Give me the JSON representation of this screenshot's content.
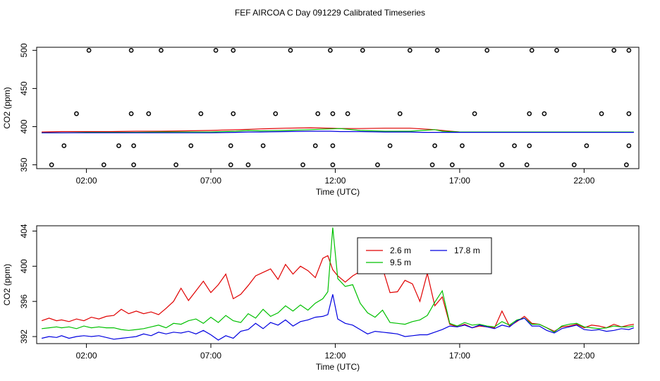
{
  "figure": {
    "title": "FEF AIRCOA C  Day 091229  Calibrated Timeseries"
  },
  "colors": {
    "series_2_6m": "#e00000",
    "series_9_5m": "#00c000",
    "series_17_8m": "#0000e0",
    "calib": "#000000"
  },
  "chart_data": [
    {
      "type": "line",
      "title": "FEF AIRCOA C  Day 091229  Calibrated Timeseries",
      "xlabel": "Time (UTC)",
      "ylabel": "CO2 (ppm)",
      "xlim": [
        0,
        24.2
      ],
      "ylim": [
        345,
        504
      ],
      "x_ticks": [
        2,
        7,
        12,
        17,
        22
      ],
      "x_tick_labels": [
        "02:00",
        "07:00",
        "12:00",
        "17:00",
        "22:00"
      ],
      "y_ticks": [
        350,
        400,
        450,
        500
      ],
      "y_tick_labels": [
        "350",
        "400",
        "450",
        "500"
      ],
      "x": [
        0.2,
        1,
        2,
        3,
        4,
        5,
        6,
        7,
        8,
        8.5,
        9,
        10,
        11,
        11.8,
        12.2,
        13,
        14,
        15,
        15.5,
        16,
        16.3,
        17,
        18,
        19,
        20,
        21,
        22,
        23,
        23.5,
        24
      ],
      "series": [
        {
          "name": "2.6 m",
          "values": [
            393,
            393.5,
            393.5,
            393.5,
            394,
            394,
            394.5,
            395,
            396,
            396.5,
            397,
            398,
            398.5,
            398,
            397.5,
            397.5,
            398,
            398,
            397,
            396,
            395,
            393,
            393,
            393,
            393,
            393,
            393,
            393,
            393,
            393
          ]
        },
        {
          "name": "9.5 m",
          "values": [
            392,
            392,
            392.5,
            392.5,
            392.5,
            393,
            393,
            393,
            394,
            395,
            394.5,
            395,
            396,
            397,
            397.5,
            395,
            394,
            394,
            395,
            396,
            394,
            393,
            393,
            393,
            393,
            393,
            393,
            393,
            393,
            393
          ]
        },
        {
          "name": "17.8 m",
          "values": [
            392,
            392,
            392,
            392,
            392,
            392,
            392,
            392,
            392.5,
            393,
            393,
            393.5,
            394,
            394,
            393.5,
            393.5,
            393,
            393,
            392.5,
            392.5,
            392.5,
            392.5,
            392.5,
            392.5,
            392.5,
            392.5,
            392.5,
            392.5,
            392.5,
            392.5
          ]
        }
      ],
      "calibration_points": {
        "x": [
          0.6,
          1.1,
          1.6,
          2.1,
          2.7,
          3.3,
          3.9,
          3.9,
          3.8,
          3.8,
          4.5,
          5,
          5.6,
          6.2,
          6.6,
          7.2,
          7.8,
          7.8,
          7.9,
          7.9,
          8.5,
          9.1,
          9.6,
          10.2,
          10.7,
          11.2,
          11.3,
          11.8,
          11.9,
          11.9,
          11.9,
          12.5,
          13.1,
          13.7,
          14.2,
          14.6,
          15,
          15.9,
          16,
          16.1,
          16.7,
          17.1,
          17.6,
          18.1,
          18.7,
          19.2,
          19.7,
          19.8,
          19.8,
          19.9,
          20.4,
          20.9,
          21.6,
          22.1,
          22.7,
          23.2,
          23.7,
          23.8,
          23.8,
          23.8
        ],
        "y": [
          350,
          375,
          417,
          500,
          350,
          375,
          350,
          375,
          417,
          500,
          417,
          500,
          350,
          375,
          417,
          500,
          350,
          375,
          417,
          500,
          350,
          375,
          417,
          500,
          350,
          375,
          417,
          500,
          350,
          375,
          417,
          417,
          500,
          350,
          375,
          417,
          500,
          350,
          375,
          500,
          350,
          375,
          417,
          500,
          350,
          375,
          350,
          375,
          417,
          500,
          417,
          500,
          350,
          375,
          417,
          500,
          350,
          375,
          417,
          500
        ]
      }
    },
    {
      "type": "line",
      "title": "",
      "xlabel": "Time (UTC)",
      "ylabel": "CO2 (ppm)",
      "xlim": [
        0,
        24.2
      ],
      "ylim": [
        391.2,
        404.6
      ],
      "x_ticks": [
        2,
        7,
        12,
        17,
        22
      ],
      "x_tick_labels": [
        "02:00",
        "07:00",
        "12:00",
        "17:00",
        "22:00"
      ],
      "y_ticks": [
        392,
        396,
        400,
        404
      ],
      "y_tick_labels": [
        "392",
        "396",
        "400",
        "404"
      ],
      "legend": {
        "entries": [
          "2.6 m",
          "9.5 m",
          "17.8 m"
        ],
        "placement": "top-center"
      },
      "x": [
        0.2,
        0.5,
        0.8,
        1.0,
        1.3,
        1.6,
        1.9,
        2.2,
        2.5,
        2.8,
        3.1,
        3.4,
        3.7,
        4.0,
        4.3,
        4.6,
        4.9,
        5.2,
        5.5,
        5.8,
        6.1,
        6.4,
        6.7,
        7.0,
        7.3,
        7.6,
        7.9,
        8.2,
        8.5,
        8.8,
        9.1,
        9.4,
        9.7,
        10.0,
        10.3,
        10.6,
        10.9,
        11.2,
        11.5,
        11.7,
        11.9,
        12.1,
        12.4,
        12.7,
        13.0,
        13.3,
        13.6,
        13.9,
        14.2,
        14.5,
        14.8,
        15.1,
        15.4,
        15.7,
        16.0,
        16.3,
        16.6,
        16.9,
        17.2,
        17.5,
        17.8,
        18.1,
        18.4,
        18.7,
        19.0,
        19.3,
        19.6,
        19.9,
        20.2,
        20.5,
        20.8,
        21.1,
        21.4,
        21.7,
        22.0,
        22.3,
        22.6,
        22.9,
        23.2,
        23.5,
        23.8,
        24.0
      ],
      "series": [
        {
          "name": "2.6 m",
          "values": [
            393.8,
            394.1,
            393.8,
            393.9,
            393.7,
            394.0,
            393.8,
            394.2,
            394.0,
            394.3,
            394.4,
            395.1,
            394.6,
            394.9,
            394.6,
            394.8,
            394.5,
            395.2,
            396.0,
            397.5,
            396.1,
            397.2,
            398.3,
            397.0,
            397.9,
            399.1,
            396.3,
            396.8,
            397.8,
            398.9,
            399.3,
            399.7,
            398.5,
            400.2,
            399.1,
            400.0,
            399.5,
            398.7,
            400.9,
            401.2,
            399.6,
            398.9,
            398.2,
            398.9,
            399.4,
            399.6,
            399.2,
            399.8,
            397.0,
            397.1,
            398.4,
            398.0,
            396.0,
            399.2,
            395.5,
            396.5,
            393.4,
            393.1,
            393.4,
            393.0,
            393.2,
            393.1,
            393.0,
            394.9,
            393.2,
            393.7,
            394.3,
            393.5,
            393.4,
            393.0,
            392.6,
            393.1,
            393.2,
            393.4,
            393.0,
            393.3,
            393.2,
            393.0,
            393.4,
            393.1,
            393.3,
            393.4
          ]
        },
        {
          "name": "9.5 m",
          "values": [
            392.9,
            393.0,
            393.1,
            393.0,
            393.1,
            392.9,
            393.2,
            393.0,
            393.1,
            393.0,
            393.0,
            392.8,
            392.7,
            392.8,
            392.9,
            393.1,
            393.3,
            393.0,
            393.5,
            393.4,
            393.8,
            394.0,
            393.5,
            394.2,
            393.6,
            394.4,
            393.8,
            393.6,
            394.6,
            394.1,
            395.1,
            394.3,
            394.7,
            395.5,
            394.9,
            395.6,
            395.0,
            395.8,
            396.3,
            397.1,
            404.4,
            398.6,
            397.7,
            397.9,
            395.8,
            394.7,
            394.2,
            395.0,
            393.6,
            393.5,
            393.4,
            393.7,
            393.9,
            394.4,
            395.9,
            397.2,
            393.5,
            393.2,
            393.6,
            393.3,
            393.4,
            393.2,
            393.1,
            393.7,
            393.3,
            393.9,
            394.1,
            393.4,
            393.4,
            393.0,
            392.5,
            393.2,
            393.4,
            393.5,
            393.1,
            393.0,
            392.9,
            393.0,
            393.2,
            393.1,
            393.1,
            393.2
          ]
        },
        {
          "name": "17.8 m",
          "values": [
            391.8,
            392.0,
            391.9,
            392.1,
            391.8,
            392.0,
            392.1,
            392.0,
            392.1,
            391.9,
            391.7,
            391.8,
            391.9,
            392.0,
            392.3,
            392.1,
            392.5,
            392.3,
            392.5,
            392.4,
            392.6,
            392.3,
            392.7,
            392.2,
            391.6,
            392.1,
            391.8,
            392.6,
            392.8,
            393.5,
            392.9,
            393.6,
            393.3,
            393.9,
            393.2,
            393.7,
            393.9,
            394.2,
            394.3,
            394.5,
            396.8,
            394.0,
            393.5,
            393.3,
            392.8,
            392.3,
            392.6,
            392.5,
            392.4,
            392.3,
            392.0,
            392.1,
            392.2,
            392.2,
            392.5,
            392.8,
            393.2,
            393.1,
            393.3,
            393.0,
            393.3,
            393.1,
            392.9,
            393.3,
            393.1,
            393.8,
            394.1,
            393.2,
            393.2,
            392.7,
            392.4,
            392.9,
            393.1,
            393.3,
            392.8,
            392.7,
            392.8,
            392.6,
            392.7,
            392.9,
            392.8,
            393.0
          ]
        }
      ]
    }
  ]
}
